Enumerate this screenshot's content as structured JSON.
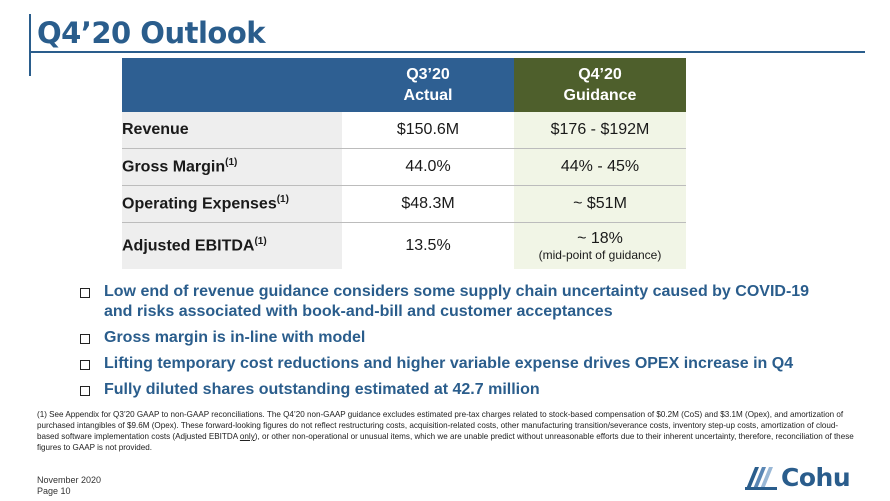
{
  "slide": {
    "title": "Q4’20 Outlook",
    "footer": {
      "date": "November  2020",
      "page": "Page 10"
    },
    "logo_text": "Cohu"
  },
  "table": {
    "headers": {
      "label": "",
      "actual_line1": "Q3’20",
      "actual_line2": "Actual",
      "guidance_line1": "Q4’20",
      "guidance_line2": "Guidance"
    },
    "rows": [
      {
        "label": "Revenue",
        "footnote_mark": "",
        "actual": "$150.6M",
        "guidance": "$176 - $192M",
        "guidance_note": ""
      },
      {
        "label": "Gross Margin",
        "footnote_mark": "(1)",
        "actual": "44.0%",
        "guidance": "44% - 45%",
        "guidance_note": ""
      },
      {
        "label": "Operating Expenses",
        "footnote_mark": "(1)",
        "actual": "$48.3M",
        "guidance": "~ $51M",
        "guidance_note": ""
      },
      {
        "label": "Adjusted EBITDA",
        "footnote_mark": "(1)",
        "actual": "13.5%",
        "guidance": "~ 18%",
        "guidance_note": "(mid-point of guidance)"
      }
    ]
  },
  "bullets": [
    "Low end of revenue guidance considers some supply chain uncertainty caused by COVID-19 and risks associated with book-and-bill and customer acceptances",
    "Gross margin is in-line with model",
    "Lifting temporary cost reductions and higher variable expense drives OPEX increase in Q4",
    "Fully diluted shares outstanding estimated at 42.7 million"
  ],
  "footnote": {
    "part1": "(1) See Appendix for Q3’20 GAAP to non-GAAP reconciliations. The Q4’20 non-GAAP guidance excludes estimated pre-tax charges related to stock-based compensation of $0.2M (CoS) and $3.1M (Opex), and amortization of purchased intangibles of $9.6M (Opex). These forward-looking figures do not reflect restructuring costs, acquisition-related costs, other manufacturing transition/severance costs, inventory step-up costs, amortization of cloud-based software implementation costs (Adjusted EBITDA ",
    "underlined": "only",
    "part2": "), or other non-operational or unusual items, which we are unable predict without unreasonable efforts due to their inherent uncertainty, therefore, reconciliation of these figures to GAAP is not provided."
  },
  "colors": {
    "title_blue": "#2a5d8c",
    "header_blue": "#2e5f92",
    "header_green": "#4e5f2c",
    "guidance_cell": "#f1f5e6"
  }
}
